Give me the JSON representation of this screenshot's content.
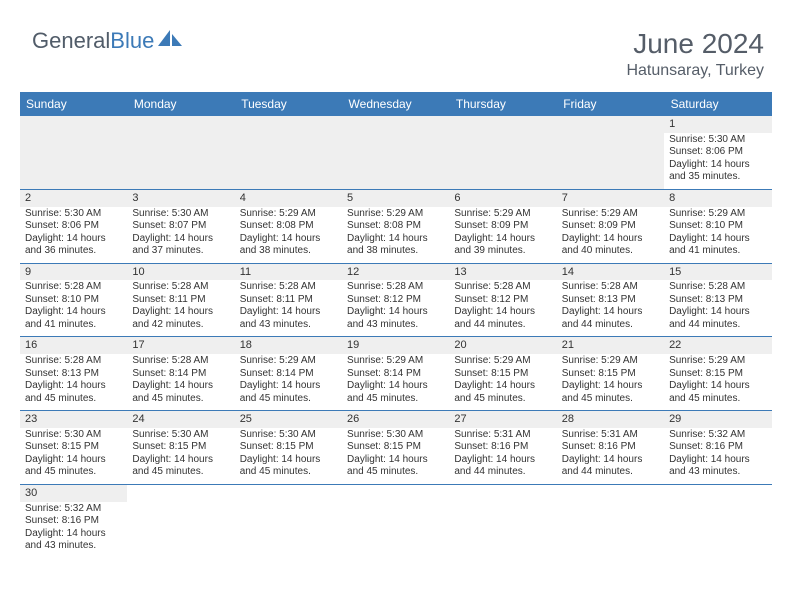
{
  "logo": {
    "general": "General",
    "blue": "Blue"
  },
  "title": "June 2024",
  "location": "Hatunsaray, Turkey",
  "colors": {
    "header_bg": "#3c7ab7",
    "header_text": "#ffffff",
    "text": "#333333",
    "title_text": "#555d68",
    "alt_row_bg": "#efefef",
    "border": "#3c7ab7"
  },
  "weekdays": [
    "Sunday",
    "Monday",
    "Tuesday",
    "Wednesday",
    "Thursday",
    "Friday",
    "Saturday"
  ],
  "weeks": [
    [
      null,
      null,
      null,
      null,
      null,
      null,
      {
        "d": "1",
        "sr": "5:30 AM",
        "ss": "8:06 PM",
        "dl": "14 hours and 35 minutes."
      }
    ],
    [
      {
        "d": "2",
        "sr": "5:30 AM",
        "ss": "8:06 PM",
        "dl": "14 hours and 36 minutes."
      },
      {
        "d": "3",
        "sr": "5:30 AM",
        "ss": "8:07 PM",
        "dl": "14 hours and 37 minutes."
      },
      {
        "d": "4",
        "sr": "5:29 AM",
        "ss": "8:08 PM",
        "dl": "14 hours and 38 minutes."
      },
      {
        "d": "5",
        "sr": "5:29 AM",
        "ss": "8:08 PM",
        "dl": "14 hours and 38 minutes."
      },
      {
        "d": "6",
        "sr": "5:29 AM",
        "ss": "8:09 PM",
        "dl": "14 hours and 39 minutes."
      },
      {
        "d": "7",
        "sr": "5:29 AM",
        "ss": "8:09 PM",
        "dl": "14 hours and 40 minutes."
      },
      {
        "d": "8",
        "sr": "5:29 AM",
        "ss": "8:10 PM",
        "dl": "14 hours and 41 minutes."
      }
    ],
    [
      {
        "d": "9",
        "sr": "5:28 AM",
        "ss": "8:10 PM",
        "dl": "14 hours and 41 minutes."
      },
      {
        "d": "10",
        "sr": "5:28 AM",
        "ss": "8:11 PM",
        "dl": "14 hours and 42 minutes."
      },
      {
        "d": "11",
        "sr": "5:28 AM",
        "ss": "8:11 PM",
        "dl": "14 hours and 43 minutes."
      },
      {
        "d": "12",
        "sr": "5:28 AM",
        "ss": "8:12 PM",
        "dl": "14 hours and 43 minutes."
      },
      {
        "d": "13",
        "sr": "5:28 AM",
        "ss": "8:12 PM",
        "dl": "14 hours and 44 minutes."
      },
      {
        "d": "14",
        "sr": "5:28 AM",
        "ss": "8:13 PM",
        "dl": "14 hours and 44 minutes."
      },
      {
        "d": "15",
        "sr": "5:28 AM",
        "ss": "8:13 PM",
        "dl": "14 hours and 44 minutes."
      }
    ],
    [
      {
        "d": "16",
        "sr": "5:28 AM",
        "ss": "8:13 PM",
        "dl": "14 hours and 45 minutes."
      },
      {
        "d": "17",
        "sr": "5:28 AM",
        "ss": "8:14 PM",
        "dl": "14 hours and 45 minutes."
      },
      {
        "d": "18",
        "sr": "5:29 AM",
        "ss": "8:14 PM",
        "dl": "14 hours and 45 minutes."
      },
      {
        "d": "19",
        "sr": "5:29 AM",
        "ss": "8:14 PM",
        "dl": "14 hours and 45 minutes."
      },
      {
        "d": "20",
        "sr": "5:29 AM",
        "ss": "8:15 PM",
        "dl": "14 hours and 45 minutes."
      },
      {
        "d": "21",
        "sr": "5:29 AM",
        "ss": "8:15 PM",
        "dl": "14 hours and 45 minutes."
      },
      {
        "d": "22",
        "sr": "5:29 AM",
        "ss": "8:15 PM",
        "dl": "14 hours and 45 minutes."
      }
    ],
    [
      {
        "d": "23",
        "sr": "5:30 AM",
        "ss": "8:15 PM",
        "dl": "14 hours and 45 minutes."
      },
      {
        "d": "24",
        "sr": "5:30 AM",
        "ss": "8:15 PM",
        "dl": "14 hours and 45 minutes."
      },
      {
        "d": "25",
        "sr": "5:30 AM",
        "ss": "8:15 PM",
        "dl": "14 hours and 45 minutes."
      },
      {
        "d": "26",
        "sr": "5:30 AM",
        "ss": "8:15 PM",
        "dl": "14 hours and 45 minutes."
      },
      {
        "d": "27",
        "sr": "5:31 AM",
        "ss": "8:16 PM",
        "dl": "14 hours and 44 minutes."
      },
      {
        "d": "28",
        "sr": "5:31 AM",
        "ss": "8:16 PM",
        "dl": "14 hours and 44 minutes."
      },
      {
        "d": "29",
        "sr": "5:32 AM",
        "ss": "8:16 PM",
        "dl": "14 hours and 43 minutes."
      }
    ],
    [
      {
        "d": "30",
        "sr": "5:32 AM",
        "ss": "8:16 PM",
        "dl": "14 hours and 43 minutes."
      },
      null,
      null,
      null,
      null,
      null,
      null
    ]
  ],
  "labels": {
    "sunrise": "Sunrise:",
    "sunset": "Sunset:",
    "daylight": "Daylight:"
  }
}
